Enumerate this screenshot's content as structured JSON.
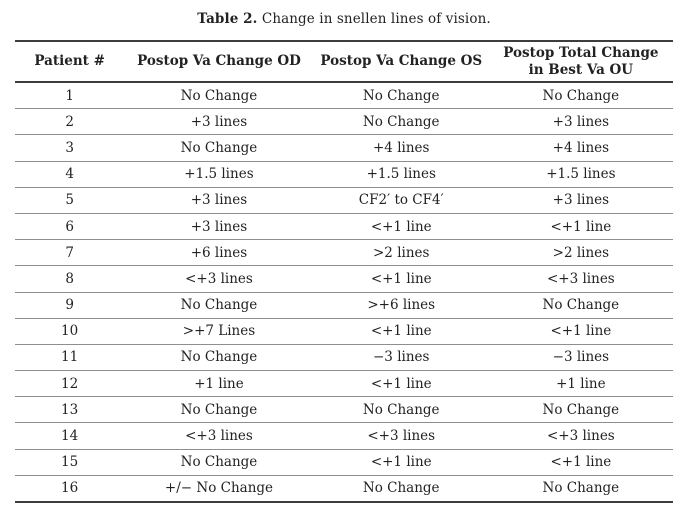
{
  "caption": {
    "label": "Table 2.",
    "text": "Change in snellen lines of vision."
  },
  "table": {
    "columns": [
      "Patient #",
      "Postop Va Change OD",
      "Postop Va Change OS",
      "Postop Total Change in Best Va OU"
    ],
    "rows": [
      [
        "1",
        "No Change",
        "No Change",
        "No Change"
      ],
      [
        "2",
        "+3 lines",
        "No Change",
        "+3 lines"
      ],
      [
        "3",
        "No Change",
        "+4 lines",
        "+4 lines"
      ],
      [
        "4",
        "+1.5 lines",
        "+1.5 lines",
        "+1.5 lines"
      ],
      [
        "5",
        "+3 lines",
        "CF2′ to CF4′",
        "+3 lines"
      ],
      [
        "6",
        "+3 lines",
        "<+1 line",
        "<+1 line"
      ],
      [
        "7",
        "+6 lines",
        ">2 lines",
        ">2 lines"
      ],
      [
        "8",
        "<+3 lines",
        "<+1 line",
        "<+3 lines"
      ],
      [
        "9",
        "No Change",
        ">+6 lines",
        "No Change"
      ],
      [
        "10",
        ">+7 Lines",
        "<+1 line",
        "<+1 line"
      ],
      [
        "11",
        "No Change",
        "−3 lines",
        "−3 lines"
      ],
      [
        "12",
        "+1 line",
        "<+1 line",
        "+1 line"
      ],
      [
        "13",
        "No Change",
        "No Change",
        "No Change"
      ],
      [
        "14",
        "<+3 lines",
        "<+3 lines",
        "<+3 lines"
      ],
      [
        "15",
        "No Change",
        "<+1 line",
        "<+1 line"
      ],
      [
        "16",
        "+/− No Change",
        "No Change",
        "No Change"
      ]
    ]
  }
}
